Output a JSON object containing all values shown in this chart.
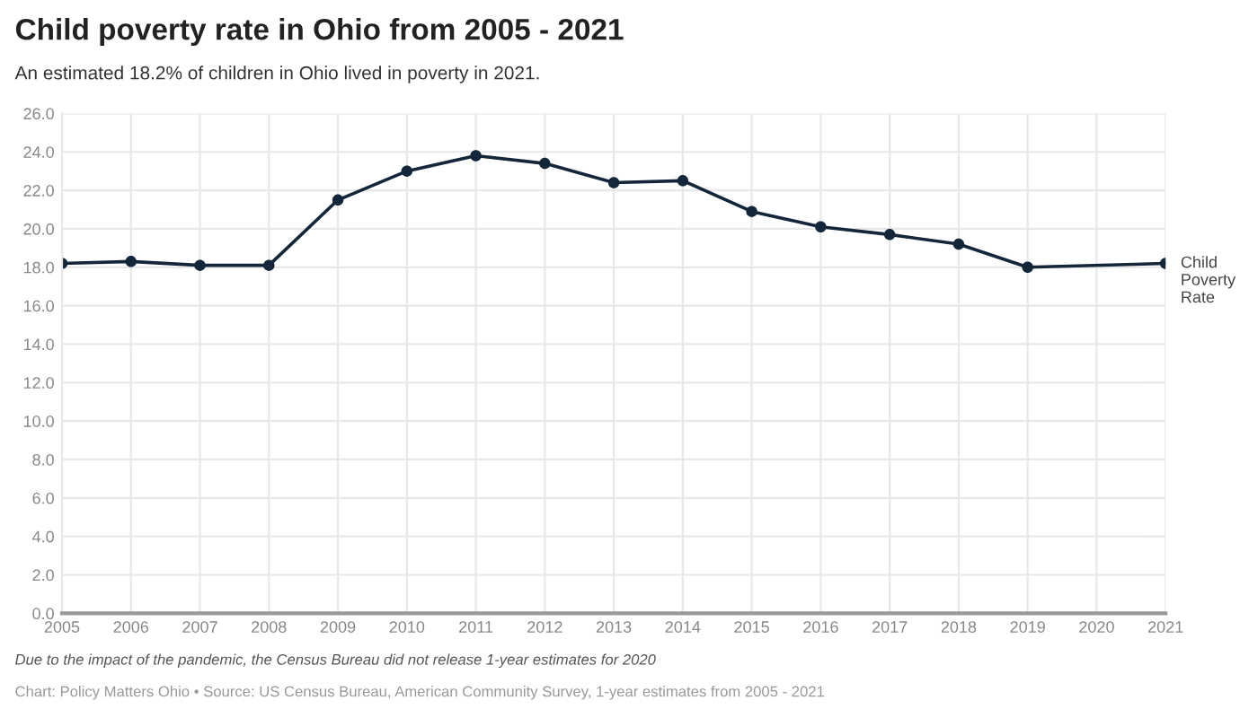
{
  "chart_data": {
    "type": "line",
    "title": "Child poverty rate in Ohio from 2005 - 2021",
    "subtitle": "An estimated 18.2% of children in Ohio lived in poverty in 2021.",
    "x": [
      2005,
      2006,
      2007,
      2008,
      2009,
      2010,
      2011,
      2012,
      2013,
      2014,
      2015,
      2016,
      2017,
      2018,
      2019,
      2021
    ],
    "series": [
      {
        "name": "Child Poverty Rate",
        "color": "#13263a",
        "values": [
          18.2,
          18.3,
          18.1,
          18.1,
          21.5,
          23.0,
          23.8,
          23.4,
          22.4,
          22.5,
          20.9,
          20.1,
          19.7,
          19.2,
          18.0,
          18.2
        ]
      }
    ],
    "xlim": [
      2005,
      2021
    ],
    "xticks": [
      2005,
      2006,
      2007,
      2008,
      2009,
      2010,
      2011,
      2012,
      2013,
      2014,
      2015,
      2016,
      2017,
      2018,
      2019,
      2020,
      2021
    ],
    "ylim": [
      0,
      26
    ],
    "yticks": [
      {
        "value": 0,
        "label": "0.0"
      },
      {
        "value": 2,
        "label": "2.0"
      },
      {
        "value": 4,
        "label": "4.0"
      },
      {
        "value": 6,
        "label": "6.0"
      },
      {
        "value": 8,
        "label": "8.0"
      },
      {
        "value": 10,
        "label": "10.0"
      },
      {
        "value": 12,
        "label": "12.0"
      },
      {
        "value": 14,
        "label": "14.0"
      },
      {
        "value": 16,
        "label": "16.0"
      },
      {
        "value": 18,
        "label": "18.0"
      },
      {
        "value": 20,
        "label": "20.0"
      },
      {
        "value": 22,
        "label": "22.0"
      },
      {
        "value": 24,
        "label": "24.0"
      },
      {
        "value": 26,
        "label": "26.0"
      }
    ],
    "grid": true,
    "marker": "circle",
    "line_style": "solid",
    "legend": false,
    "annotations": [
      "Due to the impact of the pandemic, the Census Bureau did not release 1-year estimates for 2020",
      "Chart: Policy Matters Ohio • Source: US Census Bureau, American Community Survey, 1-year estimates from 2005 - 2021"
    ]
  }
}
